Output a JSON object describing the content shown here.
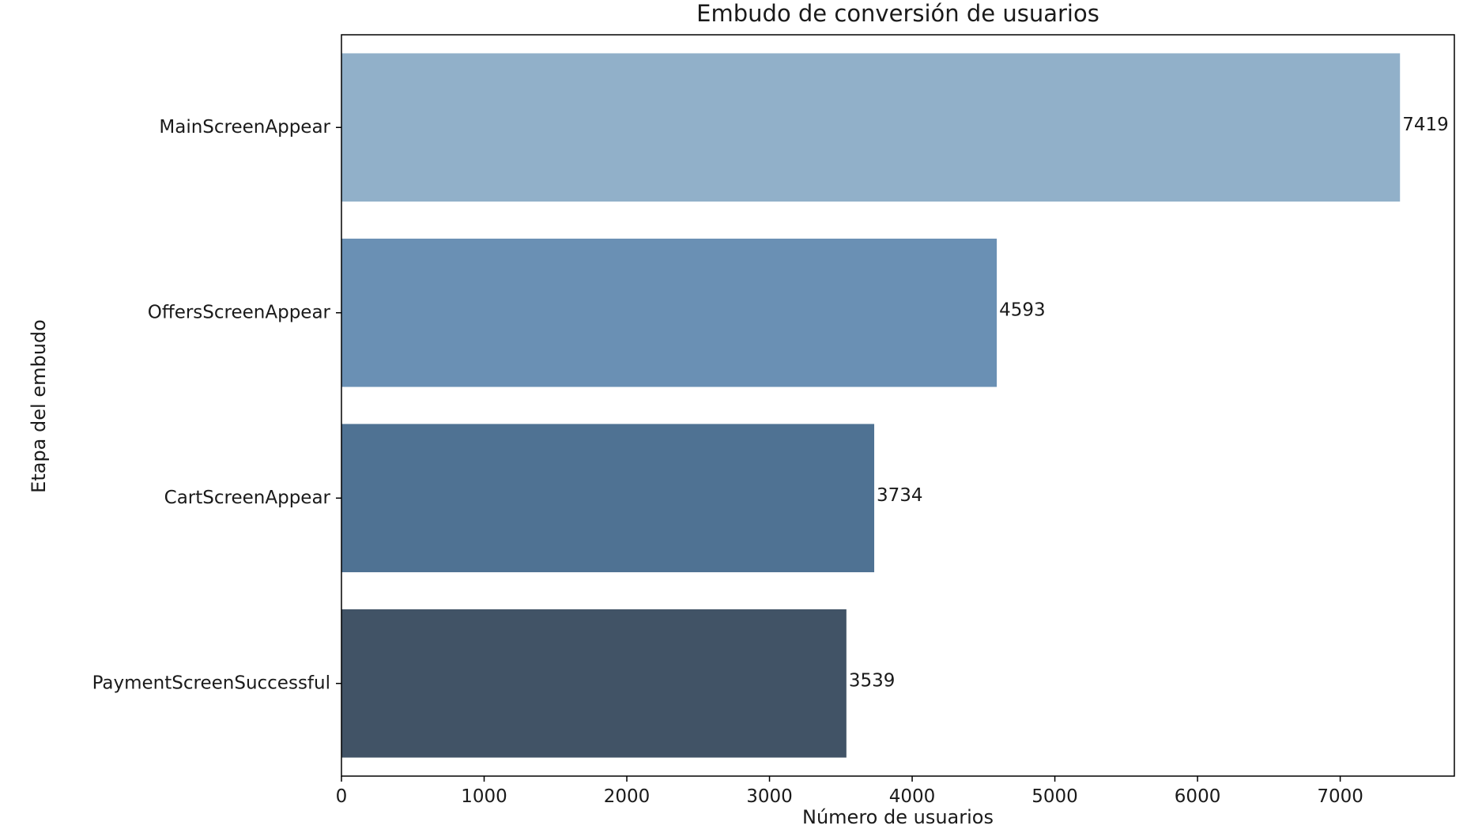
{
  "chart_data": {
    "type": "bar",
    "orientation": "horizontal",
    "title": "Embudo de conversión de usuarios",
    "xlabel": "Número de usuarios",
    "ylabel": "Etapa del embudo",
    "categories": [
      "MainScreenAppear",
      "OffersScreenAppear",
      "CartScreenAppear",
      "PaymentScreenSuccessful"
    ],
    "values": [
      7419,
      4593,
      3734,
      3539
    ],
    "data_labels": [
      "7419",
      "4593",
      "3734",
      "3539"
    ],
    "colors": [
      "#91b0c9",
      "#6a90b4",
      "#4f7293",
      "#415366"
    ],
    "xlim": [
      0,
      7800
    ],
    "xticks": [
      0,
      1000,
      2000,
      3000,
      4000,
      5000,
      6000,
      7000
    ],
    "xtick_labels": [
      "0",
      "1000",
      "2000",
      "3000",
      "4000",
      "5000",
      "6000",
      "7000"
    ],
    "grid": false,
    "legend": "none"
  }
}
